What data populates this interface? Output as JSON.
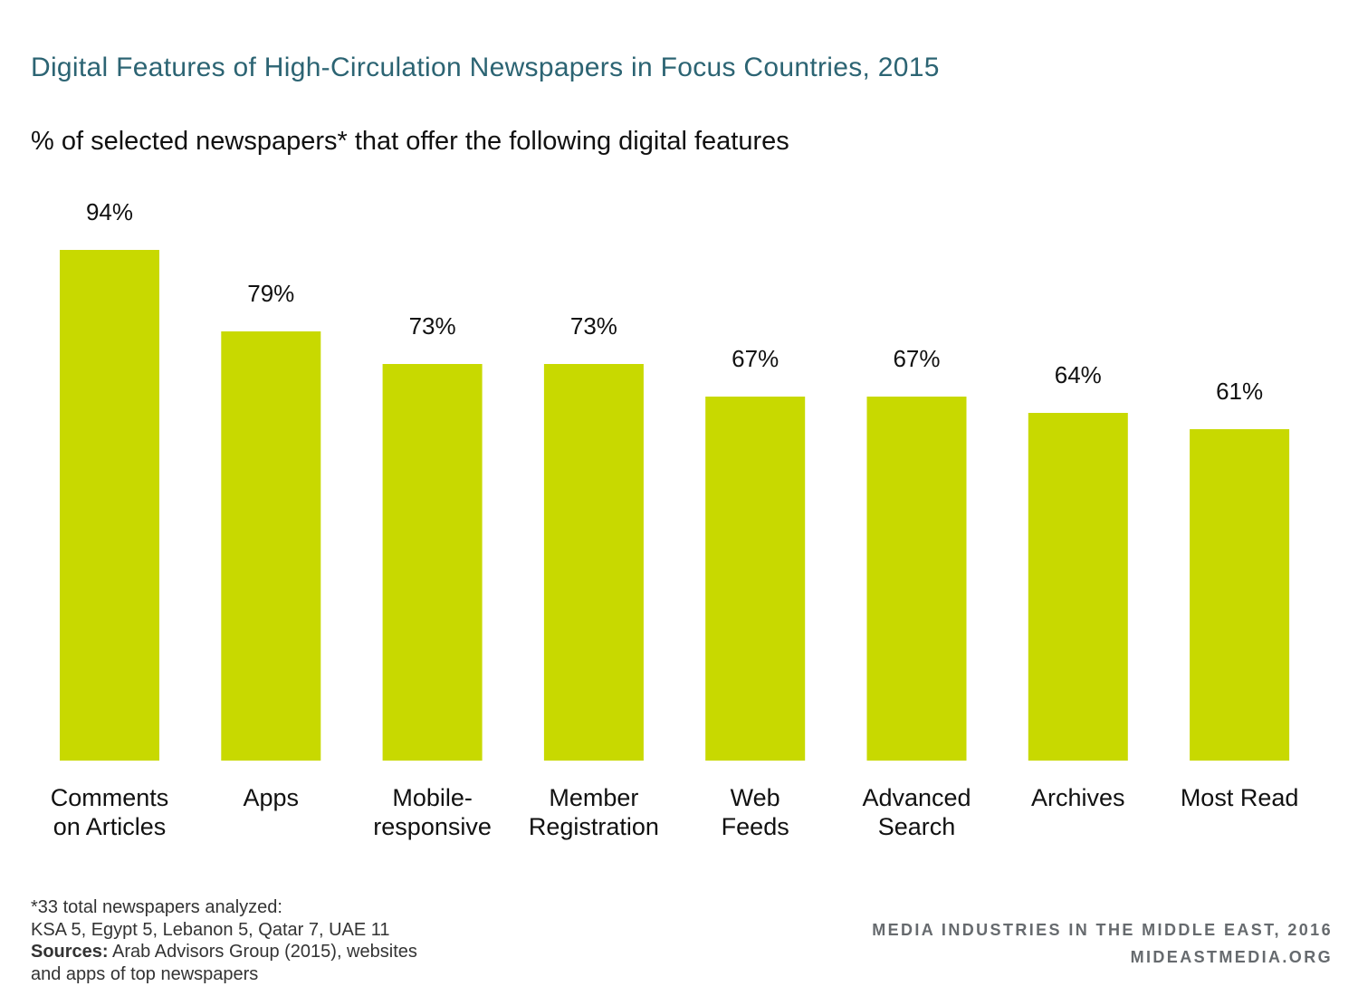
{
  "chart_data": {
    "type": "bar",
    "title": "Digital Features of High-Circulation Newspapers in Focus Countries, 2015",
    "subtitle": "% of selected newspapers* that offer the following digital features",
    "categories": [
      [
        "Comments",
        "on Articles"
      ],
      [
        "Apps"
      ],
      [
        "Mobile-",
        "responsive"
      ],
      [
        "Member",
        "Registration"
      ],
      [
        "Web",
        "Feeds"
      ],
      [
        "Advanced",
        "Search"
      ],
      [
        "Archives"
      ],
      [
        "Most Read"
      ]
    ],
    "values": [
      94,
      79,
      73,
      73,
      67,
      67,
      64,
      61
    ],
    "value_labels": [
      "94%",
      "79%",
      "73%",
      "73%",
      "67%",
      "67%",
      "64%",
      "61%"
    ],
    "ylim": [
      0,
      100
    ],
    "bar_color": "#c8d900",
    "grid": false,
    "legend": "none"
  },
  "footnote": {
    "line1": "*33 total newspapers analyzed:",
    "line2": "KSA 5, Egypt 5, Lebanon 5, Qatar 7, UAE 11",
    "sources_label": "Sources:",
    "sources_text": " Arab Advisors Group (2015), websites",
    "line4": "and apps of top newspapers"
  },
  "branding": {
    "line1": "MEDIA INDUSTRIES IN THE MIDDLE EAST, 2016",
    "line2": "MIDEASTMEDIA.ORG"
  },
  "colors": {
    "title": "#2c6473",
    "branding": "#666a6e"
  }
}
